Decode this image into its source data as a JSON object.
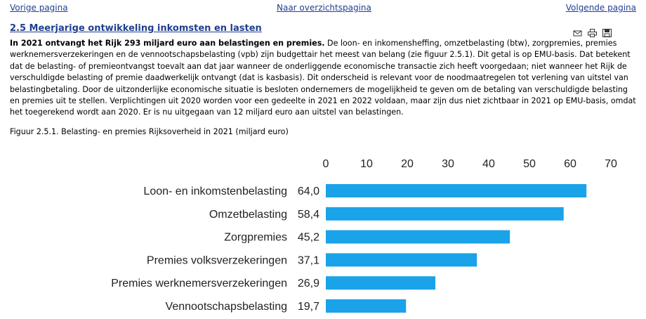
{
  "nav": {
    "prev": "Vorige pagina",
    "overview": "Naar overzichtspagina",
    "next": "Volgende pagina"
  },
  "section": {
    "title": "2.5 Meerjarige ontwikkeling inkomsten en lasten",
    "intro_bold": "In 2021 ontvangt het Rijk 293 miljard euro aan belastingen en premies.",
    "body": "De loon- en inkomensheffing, omzetbelasting (btw), zorgpremies, premies werknemersverzekeringen en de vennootschapsbelasting (vpb) zijn budgettair het meest van belang (zie figuur 2.5.1). Dit getal is op EMU-basis. Dat betekent dat de belasting- of premieontvangst toevalt aan dat jaar wanneer de onderliggende economische transactie zich heeft voorgedaan; niet wanneer het Rijk de verschuldigde belasting of premie daadwerkelijk ontvangt (dat is kasbasis). Dit onderscheid is relevant voor de noodmaatregelen tot verlening van uitstel van belastingbetaling. Door de uitzonderlijke economische situatie is besloten ondernemers de mogelijkheid te geven om de betaling van verschuldigde belasting en premies uit te stellen. Verplichtingen uit 2020 worden voor een gedeelte in 2021 en 2022 voldaan, maar zijn dus niet zichtbaar in 2021 op EMU-basis, omdat het toegerekend wordt aan 2020. Er is nu uitgegaan van 12 miljard euro aan uitstel van belastingen."
  },
  "tools": {
    "mail_icon": "mail-icon",
    "print_icon": "print-icon",
    "save_icon": "save-icon"
  },
  "figure": {
    "caption": "Figuur 2.5.1. Belasting- en premies Rijksoverheid in 2021 (miljard euro)"
  },
  "chart_data": {
    "type": "bar",
    "orientation": "horizontal",
    "categories": [
      "Loon- en inkomstenbelasting",
      "Omzetbelasting",
      "Zorgpremies",
      "Premies volksverzekeringen",
      "Premies werknemersverzekeringen",
      "Vennootschapsbelasting"
    ],
    "values": [
      64.0,
      58.4,
      45.2,
      37.1,
      26.9,
      19.7
    ],
    "value_labels": [
      "64,0",
      "58,4",
      "45,2",
      "37,1",
      "26,9",
      "19,7"
    ],
    "xlim": [
      0,
      70
    ],
    "xticks": [
      "0",
      "10",
      "20",
      "30",
      "40",
      "50",
      "60",
      "70"
    ],
    "bar_color": "#1aa3e8",
    "grid": false,
    "axis_position": "top"
  }
}
